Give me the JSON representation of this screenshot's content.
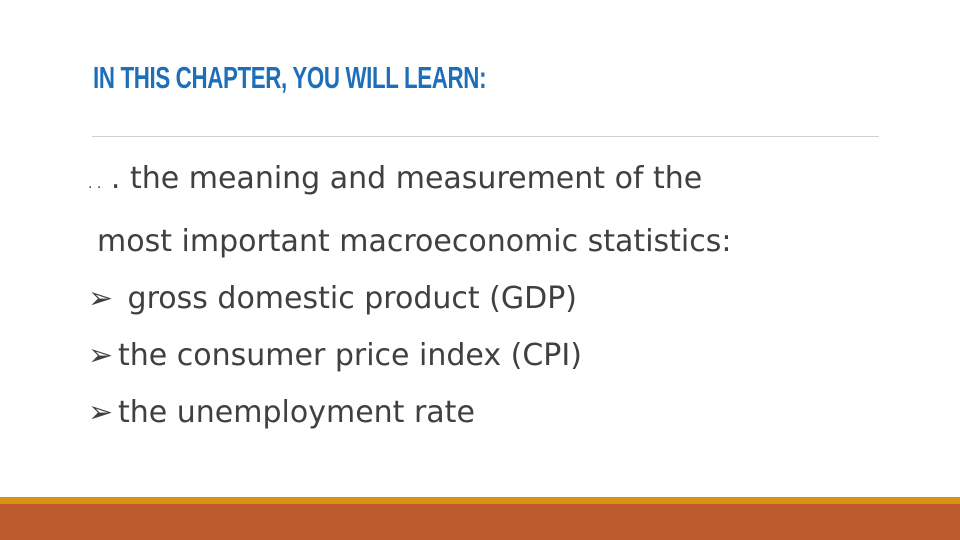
{
  "slide": {
    "title": "IN THIS CHAPTER, YOU WILL LEARN:",
    "intro_prefix": ". .",
    "intro_line1": ". the meaning and measurement of the",
    "intro_line2": "most important macroeconomic statistics:",
    "bullet_glyph": "➢",
    "bullets": [
      {
        "text": " gross domestic product (GDP)"
      },
      {
        "text": "the consumer price index (CPI)"
      },
      {
        "text": "the unemployment rate"
      }
    ]
  },
  "colors": {
    "title": "#1e6fb8",
    "text": "#404040",
    "band_top": "#d99113",
    "band_bottom": "#be5b2e"
  }
}
